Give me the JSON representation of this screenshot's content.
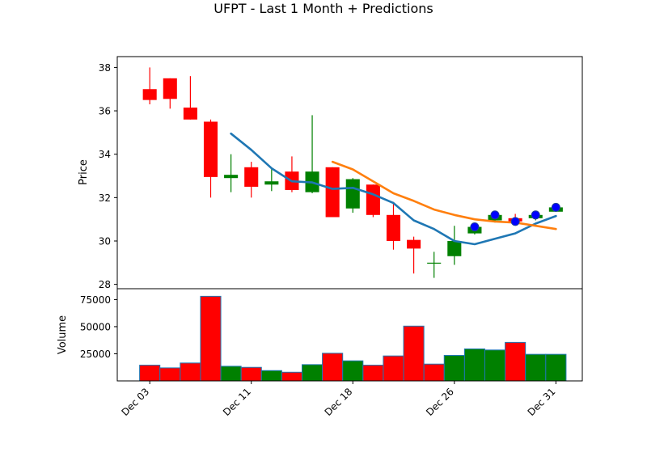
{
  "chart_data": {
    "type": "candlestick",
    "title": "UFPT - Last 1 Month + Predictions",
    "price_panel": {
      "ylabel": "Price",
      "ylim": [
        27.8,
        38.5
      ],
      "yticks": [
        28,
        30,
        32,
        34,
        36,
        38
      ],
      "ytick_labels": [
        "28",
        "30",
        "32",
        "34",
        "36",
        "38"
      ],
      "candles": [
        {
          "i": 0,
          "open": 37.0,
          "high": 38.0,
          "low": 36.3,
          "close": 36.5
        },
        {
          "i": 1,
          "open": 37.5,
          "high": 37.5,
          "low": 36.1,
          "close": 36.55
        },
        {
          "i": 2,
          "open": 36.15,
          "high": 37.6,
          "low": 35.6,
          "close": 35.6
        },
        {
          "i": 3,
          "open": 35.5,
          "high": 35.6,
          "low": 32.0,
          "close": 32.95
        },
        {
          "i": 4,
          "open": 32.9,
          "high": 34.0,
          "low": 32.25,
          "close": 33.05
        },
        {
          "i": 5,
          "open": 33.4,
          "high": 33.65,
          "low": 32.0,
          "close": 32.5
        },
        {
          "i": 6,
          "open": 32.6,
          "high": 33.3,
          "low": 32.3,
          "close": 32.75
        },
        {
          "i": 7,
          "open": 33.2,
          "high": 33.9,
          "low": 32.25,
          "close": 32.35
        },
        {
          "i": 8,
          "open": 32.25,
          "high": 35.8,
          "low": 32.2,
          "close": 33.2
        },
        {
          "i": 9,
          "open": 33.4,
          "high": 33.4,
          "low": 31.1,
          "close": 31.1
        },
        {
          "i": 10,
          "open": 31.5,
          "high": 32.9,
          "low": 31.3,
          "close": 32.85
        },
        {
          "i": 11,
          "open": 32.6,
          "high": 32.6,
          "low": 31.1,
          "close": 31.2
        },
        {
          "i": 12,
          "open": 31.2,
          "high": 31.8,
          "low": 29.6,
          "close": 30.0
        },
        {
          "i": 13,
          "open": 30.05,
          "high": 30.2,
          "low": 28.5,
          "close": 29.65
        },
        {
          "i": 14,
          "open": 29.0,
          "high": 29.5,
          "low": 28.3,
          "close": 29.0
        },
        {
          "i": 15,
          "open": 29.3,
          "high": 30.7,
          "low": 28.9,
          "close": 30.0
        },
        {
          "i": 16,
          "open": 30.35,
          "high": 30.75,
          "low": 30.3,
          "close": 30.65
        },
        {
          "i": 17,
          "open": 30.95,
          "high": 31.35,
          "low": 30.85,
          "close": 31.2
        },
        {
          "i": 18,
          "open": 31.05,
          "high": 31.25,
          "low": 30.85,
          "close": 30.9
        },
        {
          "i": 19,
          "open": 31.05,
          "high": 31.3,
          "low": 30.95,
          "close": 31.2
        },
        {
          "i": 20,
          "open": 31.35,
          "high": 31.7,
          "low": 31.35,
          "close": 31.55
        }
      ],
      "lines": [
        {
          "color": "#1f77b4",
          "points": [
            [
              4,
              34.95
            ],
            [
              5,
              34.2
            ],
            [
              6,
              33.35
            ],
            [
              7,
              32.75
            ],
            [
              8,
              32.7
            ],
            [
              9,
              32.4
            ],
            [
              10,
              32.45
            ],
            [
              11,
              32.15
            ],
            [
              12,
              31.75
            ],
            [
              13,
              30.95
            ],
            [
              14,
              30.55
            ],
            [
              15,
              30.0
            ],
            [
              16,
              29.85
            ],
            [
              17,
              30.1
            ],
            [
              18,
              30.35
            ],
            [
              19,
              30.8
            ],
            [
              20,
              31.15
            ]
          ]
        },
        {
          "color": "#ff7f0e",
          "points": [
            [
              9,
              33.65
            ],
            [
              10,
              33.3
            ],
            [
              11,
              32.75
            ],
            [
              12,
              32.2
            ],
            [
              13,
              31.85
            ],
            [
              14,
              31.45
            ],
            [
              15,
              31.2
            ],
            [
              16,
              31.0
            ],
            [
              17,
              30.9
            ],
            [
              18,
              30.85
            ],
            [
              19,
              30.7
            ],
            [
              20,
              30.55
            ]
          ]
        }
      ],
      "markers": {
        "color": "#0000ff",
        "points": [
          [
            16,
            30.65
          ],
          [
            17,
            31.2
          ],
          [
            18,
            30.9
          ],
          [
            19,
            31.2
          ],
          [
            20,
            31.55
          ]
        ]
      }
    },
    "volume_panel": {
      "ylabel": "Volume",
      "ylim": [
        0,
        85000
      ],
      "yticks": [
        25000,
        50000,
        75000
      ],
      "ytick_labels": [
        "25000",
        "50000",
        "75000"
      ],
      "bars": [
        {
          "i": 0,
          "value": 14500,
          "color": "red"
        },
        {
          "i": 1,
          "value": 12000,
          "color": "red"
        },
        {
          "i": 2,
          "value": 16500,
          "color": "red"
        },
        {
          "i": 3,
          "value": 78000,
          "color": "red"
        },
        {
          "i": 4,
          "value": 13500,
          "color": "green"
        },
        {
          "i": 5,
          "value": 12500,
          "color": "red"
        },
        {
          "i": 6,
          "value": 9500,
          "color": "green"
        },
        {
          "i": 7,
          "value": 8000,
          "color": "red"
        },
        {
          "i": 8,
          "value": 15000,
          "color": "green"
        },
        {
          "i": 9,
          "value": 25500,
          "color": "red"
        },
        {
          "i": 10,
          "value": 18500,
          "color": "green"
        },
        {
          "i": 11,
          "value": 14500,
          "color": "red"
        },
        {
          "i": 12,
          "value": 23000,
          "color": "red"
        },
        {
          "i": 13,
          "value": 50500,
          "color": "red"
        },
        {
          "i": 14,
          "value": 15500,
          "color": "red"
        },
        {
          "i": 15,
          "value": 23500,
          "color": "green"
        },
        {
          "i": 16,
          "value": 29500,
          "color": "green"
        },
        {
          "i": 17,
          "value": 28500,
          "color": "green"
        },
        {
          "i": 18,
          "value": 35500,
          "color": "red"
        },
        {
          "i": 19,
          "value": 24500,
          "color": "green"
        },
        {
          "i": 20,
          "value": 24500,
          "color": "green"
        }
      ]
    },
    "x_axis": {
      "xlim": [
        -1.6,
        21.3
      ],
      "ticks": [
        {
          "i": 0,
          "label": "Dec 03"
        },
        {
          "i": 5,
          "label": "Dec 11"
        },
        {
          "i": 10,
          "label": "Dec 18"
        },
        {
          "i": 15,
          "label": "Dec 26"
        },
        {
          "i": 20,
          "label": "Dec 31"
        }
      ]
    },
    "colors": {
      "up": "green",
      "down": "red",
      "volume_edge": "#1f77b4",
      "marker_edge": "#1f3f9f"
    }
  }
}
